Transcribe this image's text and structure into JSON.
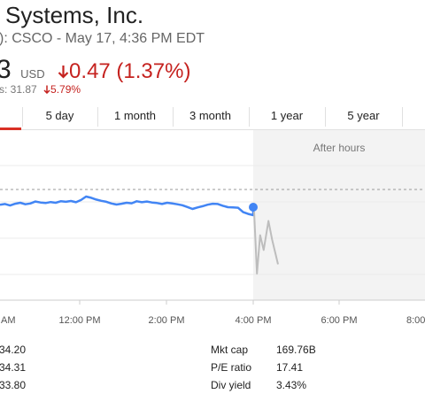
{
  "header": {
    "title": "Systems, Inc.",
    "subtitle": "): CSCO - May 17, 4:36 PM EDT",
    "price": "3",
    "currency": "USD",
    "change": "0.47 (1.37%)",
    "after_hours_label": "s: 31.87",
    "after_hours_change": "5.79%",
    "down_arrow_icon": "arrow-down-icon",
    "colors": {
      "negative": "#c5221f",
      "accent": "#d93025",
      "line": "#4285f4",
      "after": "#bdbdbd"
    }
  },
  "tabs": [
    {
      "label": "5 day"
    },
    {
      "label": "1 month"
    },
    {
      "label": "3 month"
    },
    {
      "label": "1 year"
    },
    {
      "label": "5 year"
    }
  ],
  "chart": {
    "after_hours_label": "After hours",
    "x_ticks": [
      "AM",
      "12:00 PM",
      "2:00 PM",
      "4:00 PM",
      "6:00 PM",
      "8:00"
    ],
    "intraday_points": [
      [
        0,
        0.42
      ],
      [
        0.02,
        0.45
      ],
      [
        0.04,
        0.39
      ],
      [
        0.06,
        0.46
      ],
      [
        0.08,
        0.5
      ],
      [
        0.1,
        0.44
      ],
      [
        0.12,
        0.47
      ],
      [
        0.14,
        0.55
      ],
      [
        0.16,
        0.51
      ],
      [
        0.18,
        0.49
      ],
      [
        0.2,
        0.53
      ],
      [
        0.22,
        0.5
      ],
      [
        0.24,
        0.56
      ],
      [
        0.26,
        0.54
      ],
      [
        0.28,
        0.57
      ],
      [
        0.3,
        0.52
      ],
      [
        0.32,
        0.61
      ],
      [
        0.34,
        0.75
      ],
      [
        0.36,
        0.7
      ],
      [
        0.38,
        0.63
      ],
      [
        0.4,
        0.58
      ],
      [
        0.42,
        0.54
      ],
      [
        0.44,
        0.47
      ],
      [
        0.46,
        0.43
      ],
      [
        0.48,
        0.46
      ],
      [
        0.5,
        0.5
      ],
      [
        0.52,
        0.48
      ],
      [
        0.54,
        0.56
      ],
      [
        0.56,
        0.52
      ],
      [
        0.58,
        0.55
      ],
      [
        0.6,
        0.51
      ],
      [
        0.62,
        0.49
      ],
      [
        0.64,
        0.45
      ],
      [
        0.66,
        0.5
      ],
      [
        0.68,
        0.47
      ],
      [
        0.7,
        0.44
      ],
      [
        0.72,
        0.4
      ],
      [
        0.74,
        0.33
      ],
      [
        0.76,
        0.25
      ],
      [
        0.78,
        0.31
      ],
      [
        0.8,
        0.36
      ],
      [
        0.82,
        0.42
      ],
      [
        0.84,
        0.46
      ],
      [
        0.86,
        0.45
      ],
      [
        0.88,
        0.38
      ],
      [
        0.9,
        0.32
      ],
      [
        0.92,
        0.31
      ],
      [
        0.94,
        0.3
      ],
      [
        0.96,
        0.12
      ],
      [
        0.98,
        0.05
      ],
      [
        1,
        0
      ]
    ],
    "after_points": [
      [
        0,
        1
      ],
      [
        0.12,
        0
      ],
      [
        0.25,
        0.62
      ],
      [
        0.4,
        0.38
      ],
      [
        0.6,
        0.85
      ],
      [
        0.75,
        0.55
      ],
      [
        1,
        0.15
      ]
    ]
  },
  "stats": {
    "left": [
      "34.20",
      "34.31",
      "33.80"
    ],
    "right": [
      {
        "label": "Mkt cap",
        "value": "169.76B"
      },
      {
        "label": "P/E ratio",
        "value": "17.41"
      },
      {
        "label": "Div yield",
        "value": "3.43%"
      }
    ]
  }
}
